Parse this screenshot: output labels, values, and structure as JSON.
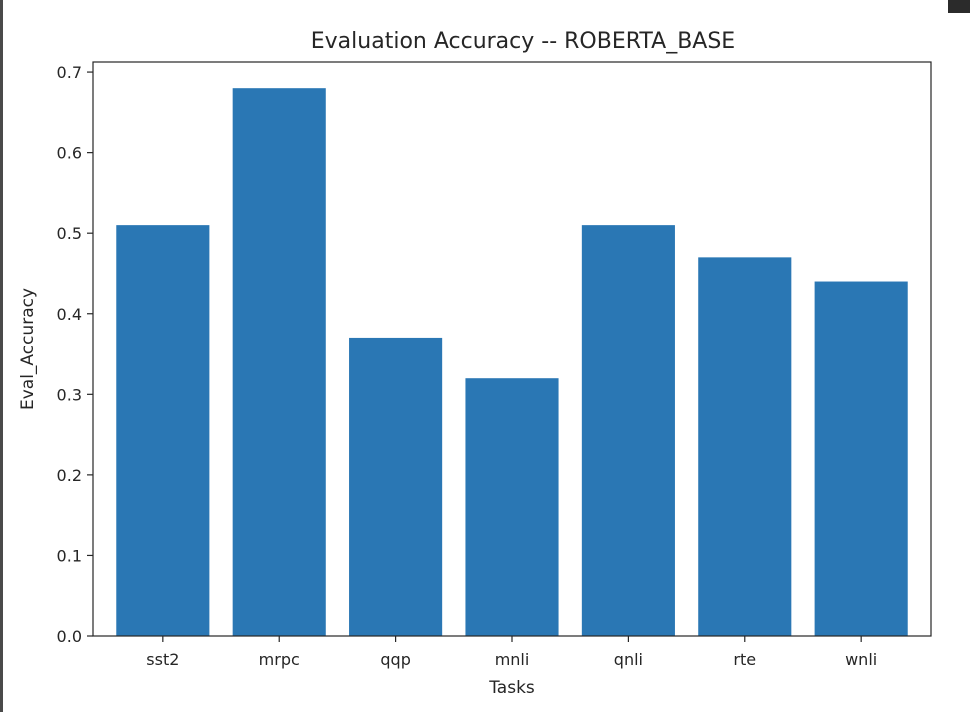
{
  "chart_data": {
    "type": "bar",
    "title": "Evaluation Accuracy -- ROBERTA_BASE",
    "xlabel": "Tasks",
    "ylabel": "Eval_Accuracy",
    "categories": [
      "sst2",
      "mrpc",
      "qqp",
      "mnli",
      "qnli",
      "rte",
      "wnli"
    ],
    "values": [
      0.51,
      0.68,
      0.37,
      0.32,
      0.51,
      0.47,
      0.44
    ],
    "ylim": [
      0,
      0.7125
    ],
    "yticks": [
      "0.0",
      "0.1",
      "0.2",
      "0.3",
      "0.4",
      "0.5",
      "0.6",
      "0.7"
    ],
    "bar_color": "#2a77b4",
    "grid": false,
    "legend": "none"
  }
}
